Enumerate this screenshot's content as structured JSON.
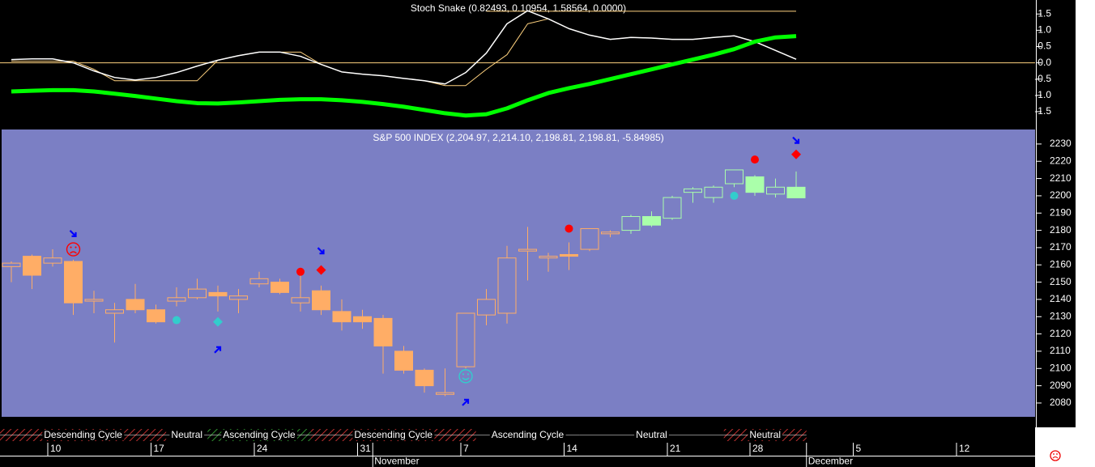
{
  "chart_data": [
    {
      "type": "line",
      "title": "Stoch Snake (0.82493, 0.10954, 1.58564, 0.0000)",
      "ylim": [
        -2.0,
        1.93
      ],
      "yticks": [
        1.5,
        {
          "value": 1,
          "label": "1.0"
        },
        0.5,
        {
          "value": 0,
          "label": "0.0"
        },
        -0.5,
        {
          "value": -1,
          "label": "-1.0"
        },
        -1.5
      ],
      "series": [
        {
          "color": "#00ff00",
          "values": [
            -0.88,
            -0.86,
            -0.84,
            -0.84,
            -0.88,
            -0.95,
            -1.02,
            -1.1,
            -1.18,
            -1.24,
            -1.25,
            -1.22,
            -1.18,
            -1.14,
            -1.12,
            -1.12,
            -1.15,
            -1.2,
            -1.27,
            -1.35,
            -1.45,
            -1.55,
            -1.62,
            -1.58,
            -1.4,
            -1.15,
            -0.93,
            -0.78,
            -0.65,
            -0.5,
            -0.35,
            -0.2,
            -0.05,
            0.1,
            0.25,
            0.42,
            0.65,
            0.78,
            0.82
          ]
        },
        {
          "color": "#ffffff",
          "values": [
            0.1,
            0.12,
            0.12,
            0.0,
            -0.25,
            -0.45,
            -0.53,
            -0.45,
            -0.3,
            -0.1,
            0.08,
            0.22,
            0.33,
            0.33,
            0.2,
            -0.05,
            -0.28,
            -0.35,
            -0.4,
            -0.48,
            -0.55,
            -0.65,
            -0.3,
            0.3,
            1.2,
            1.6,
            1.35,
            1.05,
            0.85,
            0.72,
            0.78,
            0.76,
            0.72,
            0.72,
            0.78,
            0.83,
            0.65,
            0.38,
            0.11
          ]
        },
        {
          "color": "#ffd27f",
          "values": [
            0.05,
            0.05,
            0.05,
            0.05,
            -0.2,
            -0.55,
            -0.55,
            -0.55,
            -0.55,
            -0.55,
            0.08,
            0.22,
            0.33,
            0.33,
            0.33,
            -0.05,
            -0.28,
            -0.35,
            -0.4,
            -0.48,
            -0.55,
            -0.7,
            -0.7,
            -0.2,
            0.25,
            1.2,
            1.35,
            1.05,
            0.85,
            0.72,
            0.78,
            0.76,
            0.72,
            0.72,
            0.78,
            0.83,
            0.65,
            0.38,
            0.11
          ]
        }
      ],
      "levels": [
        {
          "value": 1.58564,
          "color": "#ffd27f"
        },
        {
          "value": 0,
          "color": "#ffd27f"
        }
      ]
    },
    {
      "type": "candlestick",
      "title": "S&P 500 INDEX (2,204.97, 2,214.10, 2,198.81, 2,198.81, -5.84985)",
      "ylim": [
        2072,
        2238.4
      ],
      "yticks": [
        2080,
        2090,
        2100,
        2110,
        2120,
        2130,
        2140,
        2150,
        2160,
        2170,
        2180,
        2190,
        2200,
        2210,
        2220,
        2230
      ],
      "open": [
        2159,
        2165,
        2161,
        2162,
        2139,
        2132,
        2140,
        2134,
        2139,
        2141,
        2144,
        2140,
        2149,
        2150,
        2138,
        2145,
        2133,
        2130,
        2129,
        2110,
        2099,
        2085,
        2101,
        2131,
        2132,
        2168,
        2164,
        2166,
        2169,
        2178,
        2180,
        2188,
        2187,
        2202,
        2199,
        2207,
        2211,
        2201,
        2204.97
      ],
      "high": [
        2162,
        2166,
        2169,
        2163,
        2145,
        2138,
        2149,
        2137,
        2147,
        2152,
        2148,
        2146,
        2156,
        2152,
        2155,
        2148,
        2140,
        2134,
        2131,
        2113,
        2100,
        2100,
        2132,
        2146,
        2171,
        2182,
        2167,
        2173,
        2181,
        2180,
        2189,
        2191,
        2200,
        2205,
        2206,
        2215,
        2212,
        2210,
        2214.1
      ],
      "low": [
        2150,
        2146,
        2159,
        2131,
        2132,
        2115,
        2132,
        2126,
        2136,
        2140,
        2133,
        2132,
        2147,
        2143,
        2133,
        2131,
        2122,
        2123,
        2097,
        2097,
        2086,
        2084,
        2100,
        2125,
        2126,
        2151,
        2156,
        2157,
        2168,
        2176,
        2178,
        2182,
        2186,
        2196,
        2196,
        2205,
        2200,
        2199,
        2198.81
      ],
      "close": [
        2161,
        2154,
        2164,
        2138,
        2140,
        2134,
        2134,
        2127,
        2141,
        2146,
        2142,
        2142,
        2152,
        2144,
        2141,
        2134,
        2127,
        2127,
        2113,
        2099,
        2090,
        2086,
        2132,
        2140,
        2164,
        2169,
        2165,
        2165,
        2181,
        2179,
        2188,
        2183,
        2199,
        2204,
        2205,
        2215,
        2202,
        2205,
        2198.81
      ],
      "colors": [
        "#ffad66",
        "#ffad66",
        "#ffad66",
        "#ffad66",
        "#ffad66",
        "#ffad66",
        "#ffad66",
        "#ffad66",
        "#ffad66",
        "#ffad66",
        "#ffad66",
        "#ffad66",
        "#ffad66",
        "#ffad66",
        "#ffad66",
        "#ffad66",
        "#ffad66",
        "#ffad66",
        "#ffad66",
        "#ffad66",
        "#ffad66",
        "#ffad66",
        "#ffad66",
        "#ffad66",
        "#ffad66",
        "#ffad66",
        "#ffad66",
        "#ffad66",
        "#ffad66",
        "#ffad66",
        "#aaffaa",
        "#aaffaa",
        "#aaffaa",
        "#aaffaa",
        "#aaffaa",
        "#aaffaa",
        "#aaffaa",
        "#aaffaa",
        "#aaffaa"
      ],
      "signals": [
        {
          "index": 3,
          "value": 2178,
          "shape": "arrow-down",
          "color": "#0000ff"
        },
        {
          "index": 3,
          "value": 2169,
          "shape": "frown",
          "color": "#ff0000"
        },
        {
          "index": 8,
          "value": 2128,
          "shape": "dot",
          "color": "#33cccc"
        },
        {
          "index": 10,
          "value": 2127,
          "shape": "diamond",
          "color": "#33cccc"
        },
        {
          "index": 10,
          "value": 2111,
          "shape": "arrow-up",
          "color": "#0000ff"
        },
        {
          "index": 14,
          "value": 2156,
          "shape": "dot",
          "color": "#ff0000"
        },
        {
          "index": 15,
          "value": 2157,
          "shape": "diamond",
          "color": "#ff0000"
        },
        {
          "index": 15,
          "value": 2168,
          "shape": "arrow-down",
          "color": "#0000ff"
        },
        {
          "index": 22,
          "value": 2095.5,
          "shape": "smile",
          "color": "#33cccc"
        },
        {
          "index": 22,
          "value": 2080.5,
          "shape": "arrow-up",
          "color": "#0000ff"
        },
        {
          "index": 27,
          "value": 2181,
          "shape": "dot",
          "color": "#ff0000"
        },
        {
          "index": 35,
          "value": 2200,
          "shape": "dot",
          "color": "#33cccc"
        },
        {
          "index": 36,
          "value": 2221,
          "shape": "dot",
          "color": "#ff0000"
        },
        {
          "index": 38,
          "value": 2224,
          "shape": "diamond",
          "color": "#ff0000"
        },
        {
          "index": 38,
          "value": 2232,
          "shape": "arrow-down",
          "color": "#0000ff"
        }
      ],
      "cycles": [
        {
          "label": "Descending Cycle",
          "start": 0,
          "end": 7,
          "color": "#c03030"
        },
        {
          "label": "Neutral",
          "start": 8,
          "end": 9,
          "color": "#000000"
        },
        {
          "label": "Ascending Cycle",
          "start": 10,
          "end": 14,
          "color": "#2f8f2f"
        },
        {
          "label": "Descending Cycle",
          "start": 15,
          "end": 22,
          "color": "#c03030"
        },
        {
          "label": "Ascending Cycle",
          "start": 23,
          "end": 27,
          "color": "#000000"
        },
        {
          "label": "Neutral",
          "start": 28,
          "end": 34,
          "color": "#000000"
        },
        {
          "label": "Neutral",
          "start": 35,
          "end": 38,
          "color": "#c03030"
        }
      ],
      "date_ticks": [
        {
          "index": 2,
          "label": "10"
        },
        {
          "index": 7,
          "label": "17"
        },
        {
          "index": 12,
          "label": "24"
        },
        {
          "index": 17,
          "label": "31"
        },
        {
          "index": 22,
          "label": "7"
        },
        {
          "index": 27,
          "label": "14"
        },
        {
          "index": 32,
          "label": "21"
        },
        {
          "index": 36,
          "label": "28"
        },
        {
          "index": 41,
          "label": "5"
        },
        {
          "index": 46,
          "label": "12"
        }
      ],
      "months": [
        {
          "index": 18,
          "label": "November"
        },
        {
          "index": 39,
          "label": "December"
        }
      ]
    }
  ]
}
